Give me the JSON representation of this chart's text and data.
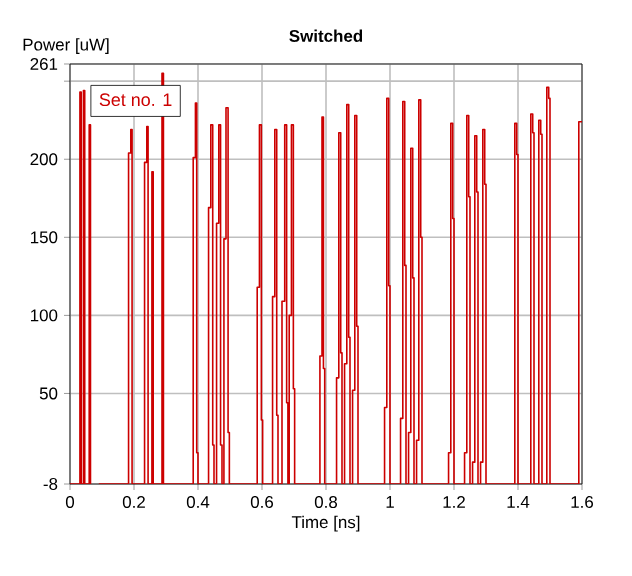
{
  "chart_data": {
    "type": "step",
    "title": "Switched",
    "xlabel": "Time [ns]",
    "ylabel": "Power [uW]",
    "x": [
      0,
      0.031,
      0.035,
      0.042,
      0.046,
      0.06,
      0.064,
      0.079,
      0.083,
      0.0875,
      0.092,
      0.183,
      0.19,
      0.194,
      0.233,
      0.24,
      0.244,
      0.256,
      0.26,
      0.2875,
      0.292,
      0.385,
      0.392,
      0.396,
      0.4,
      0.433,
      0.44,
      0.446,
      0.45,
      0.458,
      0.465,
      0.4705,
      0.475,
      0.481,
      0.4875,
      0.494,
      0.498,
      0.585,
      0.592,
      0.598,
      0.602,
      0.633,
      0.64,
      0.646,
      0.65,
      0.6625,
      0.671,
      0.677,
      0.681,
      0.685,
      0.692,
      0.698,
      0.702,
      0.781,
      0.7875,
      0.792,
      0.796,
      0.833,
      0.84,
      0.846,
      0.85,
      0.858,
      0.865,
      0.871,
      0.875,
      0.883,
      0.89,
      0.896,
      0.9,
      0.983,
      0.99,
      0.996,
      1.0,
      1.033,
      1.04,
      1.046,
      1.05,
      1.058,
      1.065,
      1.071,
      1.075,
      1.083,
      1.09,
      1.096,
      1.1,
      1.183,
      1.19,
      1.196,
      1.2,
      1.233,
      1.24,
      1.246,
      1.25,
      1.258,
      1.265,
      1.271,
      1.275,
      1.283,
      1.29,
      1.296,
      1.3,
      1.39,
      1.396,
      1.4,
      1.44,
      1.446,
      1.45,
      1.465,
      1.471,
      1.475,
      1.49,
      1.496,
      1.5,
      1.59,
      1.6
    ],
    "series": [
      {
        "name": "Set no. 1",
        "color": "#cc0000",
        "values": [
          -8,
          243,
          -8,
          244,
          -8,
          222,
          -8,
          null,
          -8,
          null,
          -8,
          204,
          219,
          -8,
          198,
          221,
          -8,
          192,
          -8,
          255,
          -8,
          201,
          236,
          12,
          -8,
          169,
          222,
          17,
          -8,
          159,
          222,
          17,
          -8,
          149,
          233,
          25,
          -8,
          118,
          222,
          33,
          -8,
          112,
          219,
          36,
          -8,
          109,
          222,
          44,
          -8,
          100,
          222,
          53,
          -8,
          74,
          227,
          66,
          -8,
          60,
          217,
          76,
          -8,
          69,
          235,
          86,
          -8,
          52,
          228,
          93,
          -8,
          41,
          239,
          119,
          -8,
          34,
          237,
          132,
          -8,
          25,
          207,
          124,
          -8,
          20,
          238,
          150,
          -8,
          12,
          223,
          162,
          -8,
          12,
          228,
          176,
          -8,
          6,
          215,
          179,
          -8,
          6,
          219,
          184,
          -8,
          223,
          203,
          -8,
          229,
          217,
          -8,
          225,
          216,
          -8,
          246,
          239,
          -8,
          224,
          224
        ]
      }
    ],
    "xlim": [
      0,
      1.6
    ],
    "ylim": [
      -8,
      261
    ],
    "xticks": [
      0,
      0.2,
      0.4,
      0.6,
      0.8,
      1,
      1.2,
      1.4,
      1.6
    ],
    "yticks": [
      -8,
      50,
      100,
      150,
      200,
      {
        "value": 250,
        "label": null
      },
      261
    ],
    "grid": true,
    "legend": "top left"
  }
}
